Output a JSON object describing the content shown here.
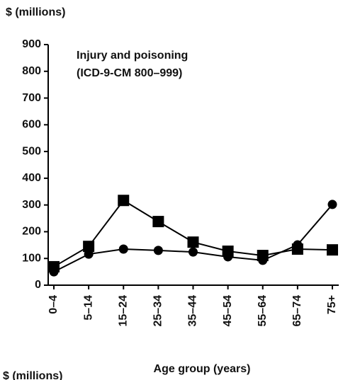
{
  "chart_data": {
    "type": "line",
    "y_axis_label": "$ (millions)",
    "title": [
      "Injury and poisoning",
      "(ICD-9-CM 800–999)"
    ],
    "x_axis_label": "Age group (years)",
    "next_panel_label": "$ (millions)",
    "categories": [
      "0–4",
      "5–14",
      "15–24",
      "25–34",
      "35–44",
      "45–54",
      "55–64",
      "65–74",
      "75+"
    ],
    "series": [
      {
        "marker": "square",
        "color": "#000000",
        "values": [
          69,
          145,
          317,
          238,
          161,
          127,
          111,
          135,
          132
        ]
      },
      {
        "marker": "circle",
        "color": "#000000",
        "values": [
          50,
          116,
          135,
          130,
          124,
          106,
          93,
          151,
          302
        ]
      }
    ],
    "ylim": [
      0,
      900
    ],
    "yticks": [
      0,
      100,
      200,
      300,
      400,
      500,
      600,
      700,
      800,
      900
    ]
  }
}
